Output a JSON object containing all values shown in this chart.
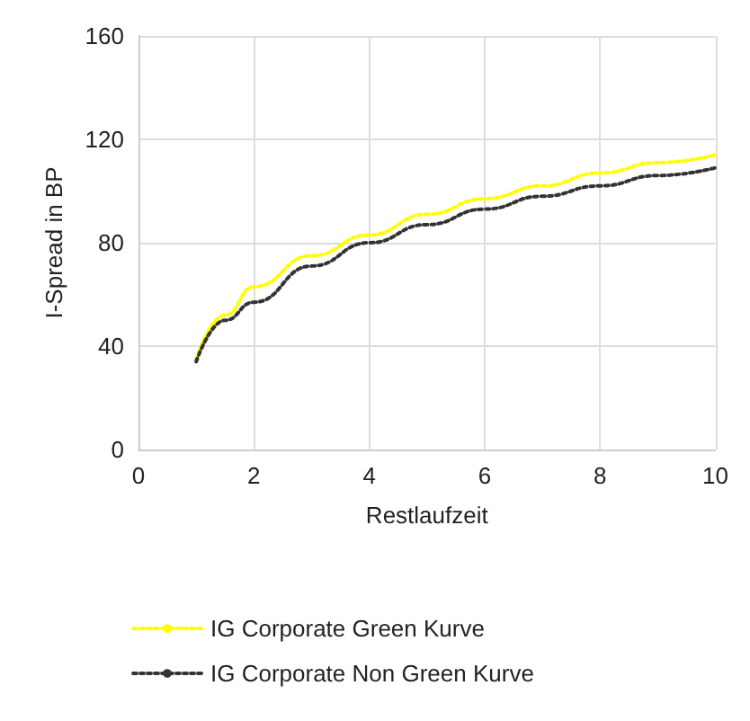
{
  "chart_data": {
    "type": "line",
    "xlabel": "Restlaufzeit",
    "ylabel": "I-Spread in BP",
    "xlim": [
      0,
      10
    ],
    "xticks": [
      0,
      2,
      4,
      6,
      8,
      10
    ],
    "ylim": [
      0,
      160
    ],
    "yticks": [
      0,
      40,
      80,
      120,
      160
    ],
    "grid": true,
    "legend": "bottom",
    "line_style": "dotted",
    "marker": "none",
    "x": [
      1,
      1.5,
      2,
      3,
      4,
      5,
      6,
      7,
      8,
      9,
      10
    ],
    "series": [
      {
        "name": "IG Corporate Green Kurve",
        "color": "#ffff00",
        "values": [
          35,
          52,
          63,
          75,
          83,
          91,
          97,
          102,
          107,
          111,
          114
        ]
      },
      {
        "name": "IG Corporate Non Green Kurve",
        "color": "#333333",
        "values": [
          34,
          50,
          57,
          71,
          80,
          87,
          93,
          98,
          102,
          106,
          109
        ]
      }
    ]
  }
}
